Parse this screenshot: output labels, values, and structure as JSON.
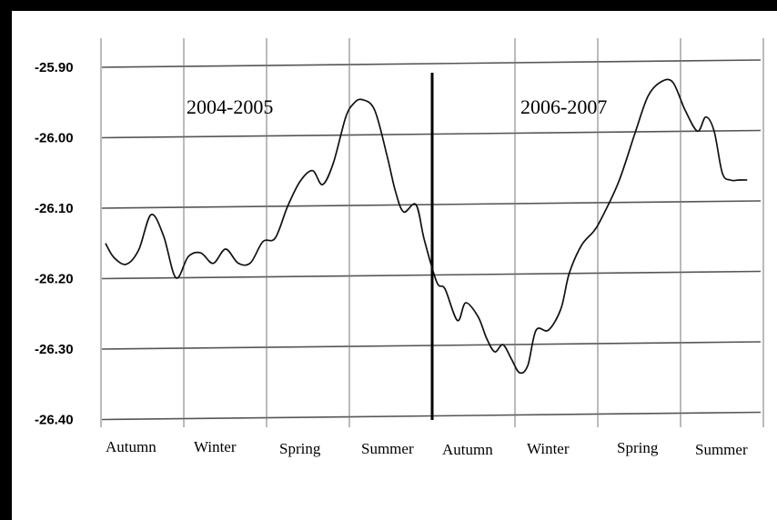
{
  "chart_data": {
    "type": "line",
    "title": "",
    "xlabel": "",
    "ylabel": "",
    "ylim": [
      -26.4,
      -25.9
    ],
    "yticks": [
      "-25.90",
      "-26.00",
      "-26.10",
      "-26.20",
      "-26.30",
      "-26.40"
    ],
    "ytick_values": [
      -25.9,
      -26.0,
      -26.1,
      -26.2,
      -26.3,
      -26.4
    ],
    "categories": [
      "Autumn",
      "Winter",
      "Spring",
      "Summer",
      "Autumn",
      "Winter",
      "Spring",
      "Summer"
    ],
    "period_labels": [
      "2004-2005",
      "2006-2007"
    ],
    "grid": true,
    "series": [
      {
        "x": [
          0.0,
          0.1,
          0.25,
          0.4,
          0.55,
          0.7,
          0.85,
          1.0,
          1.15,
          1.3,
          1.45,
          1.6,
          1.75,
          1.9,
          2.05,
          2.2,
          2.35,
          2.5,
          2.62,
          2.75,
          2.9,
          3.0,
          3.1,
          3.25,
          3.4,
          3.5,
          3.6,
          3.75,
          3.85,
          4.0,
          4.1,
          4.25,
          4.35,
          4.5,
          4.6,
          4.7,
          4.8,
          4.9,
          5.0,
          5.1,
          5.2,
          5.35,
          5.5,
          5.6,
          5.75,
          5.9,
          6.0,
          6.2,
          6.4,
          6.55,
          6.7,
          6.85,
          7.0,
          7.15,
          7.25,
          7.35,
          7.45,
          7.55,
          7.65,
          7.75
        ],
        "values": [
          -26.15,
          -26.17,
          -26.18,
          -26.16,
          -26.11,
          -26.14,
          -26.2,
          -26.17,
          -26.165,
          -26.18,
          -26.16,
          -26.18,
          -26.18,
          -26.15,
          -26.145,
          -26.1,
          -26.065,
          -26.05,
          -26.07,
          -26.04,
          -25.975,
          -25.955,
          -25.95,
          -25.965,
          -26.03,
          -26.08,
          -26.11,
          -26.1,
          -26.15,
          -26.21,
          -26.22,
          -26.265,
          -26.24,
          -26.26,
          -26.29,
          -26.31,
          -26.3,
          -26.32,
          -26.34,
          -26.33,
          -26.28,
          -26.28,
          -26.25,
          -26.2,
          -26.16,
          -26.14,
          -26.12,
          -26.07,
          -26.0,
          -25.95,
          -25.93,
          -25.93,
          -25.97,
          -26.0,
          -25.98,
          -26.0,
          -26.06,
          -26.07,
          -26.07,
          -26.07
        ]
      }
    ]
  }
}
